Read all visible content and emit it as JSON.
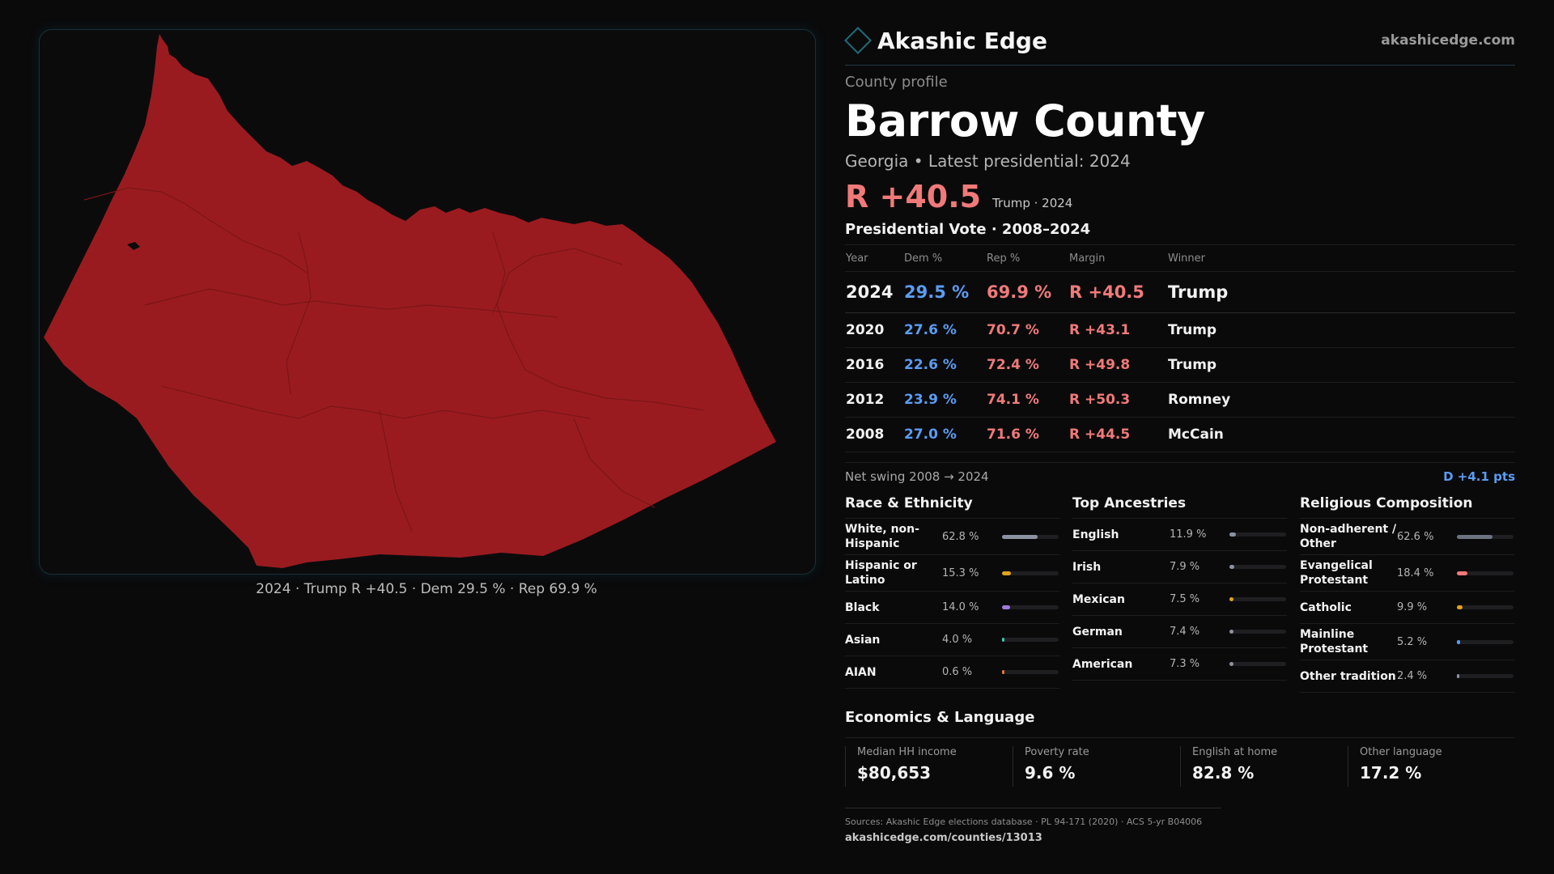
{
  "map": {
    "caption": "2024 · Trump R +40.5 · Dem 29.5 % · Rep 69.9 %",
    "fill_color": "#9a1b1f",
    "line_color": "#7a1519"
  },
  "header": {
    "brand": "Akashic Edge",
    "logo_icon": "diamond-outline",
    "site_url": "akashicedge.com"
  },
  "profile": {
    "kicker": "County profile",
    "title": "Barrow County",
    "subtitle": "Georgia • Latest presidential: 2024",
    "headline_margin": "R +40.5",
    "headline_note": "Trump · 2024"
  },
  "votes": {
    "title": "Presidential Vote · 2008–2024",
    "columns": [
      "Year",
      "Dem %",
      "Rep %",
      "Margin",
      "Winner"
    ],
    "rows": [
      {
        "year": "2024",
        "dem": "29.5 %",
        "rep": "69.9 %",
        "margin": "R +40.5",
        "winner": "Trump"
      },
      {
        "year": "2020",
        "dem": "27.6 %",
        "rep": "70.7 %",
        "margin": "R +43.1",
        "winner": "Trump"
      },
      {
        "year": "2016",
        "dem": "22.6 %",
        "rep": "72.4 %",
        "margin": "R +49.8",
        "winner": "Trump"
      },
      {
        "year": "2012",
        "dem": "23.9 %",
        "rep": "74.1 %",
        "margin": "R +50.3",
        "winner": "Romney"
      },
      {
        "year": "2008",
        "dem": "27.0 %",
        "rep": "71.6 %",
        "margin": "R +44.5",
        "winner": "McCain"
      }
    ],
    "swing_label": "Net swing 2008 → 2024",
    "swing_value": "D +4.1 pts"
  },
  "demographics": [
    {
      "title": "Race & Ethnicity",
      "items": [
        {
          "label": "White, non-Hispanic",
          "pct": "62.8 %",
          "value": 62.8,
          "color": "#8b93a1"
        },
        {
          "label": "Hispanic or Latino",
          "pct": "15.3 %",
          "value": 15.3,
          "color": "#e0a21f"
        },
        {
          "label": "Black",
          "pct": "14.0 %",
          "value": 14.0,
          "color": "#9b7be0"
        },
        {
          "label": "Asian",
          "pct": "4.0 %",
          "value": 4.0,
          "color": "#3fc4a8"
        },
        {
          "label": "AIAN",
          "pct": "0.6 %",
          "value": 0.6,
          "color": "#e07a3f"
        }
      ]
    },
    {
      "title": "Top Ancestries",
      "items": [
        {
          "label": "English",
          "pct": "11.9 %",
          "value": 11.9,
          "color": "#8b93a1"
        },
        {
          "label": "Irish",
          "pct": "7.9 %",
          "value": 7.9,
          "color": "#8b93a1"
        },
        {
          "label": "Mexican",
          "pct": "7.5 %",
          "value": 7.5,
          "color": "#e0a21f"
        },
        {
          "label": "German",
          "pct": "7.4 %",
          "value": 7.4,
          "color": "#8b93a1"
        },
        {
          "label": "American",
          "pct": "7.3 %",
          "value": 7.3,
          "color": "#8b93a1"
        }
      ]
    },
    {
      "title": "Religious Composition",
      "items": [
        {
          "label": "Non-adherent / Other",
          "pct": "62.6 %",
          "value": 62.6,
          "color": "#6b7280"
        },
        {
          "label": "Evangelical Protestant",
          "pct": "18.4 %",
          "value": 18.4,
          "color": "#f07a79"
        },
        {
          "label": "Catholic",
          "pct": "9.9 %",
          "value": 9.9,
          "color": "#e0a21f"
        },
        {
          "label": "Mainline Protestant",
          "pct": "5.2 %",
          "value": 5.2,
          "color": "#5b9cf2"
        },
        {
          "label": "Other tradition",
          "pct": "2.4 %",
          "value": 2.4,
          "color": "#8b93a1"
        }
      ]
    }
  ],
  "economics": {
    "title": "Economics & Language",
    "items": [
      {
        "label": "Median HH income",
        "value": "$80,653"
      },
      {
        "label": "Poverty rate",
        "value": "9.6 %"
      },
      {
        "label": "English at home",
        "value": "82.8 %"
      },
      {
        "label": "Other language",
        "value": "17.2 %"
      }
    ]
  },
  "footer": {
    "sources": "Sources: Akashic Edge elections database · PL 94-171 (2020) · ACS 5-yr B04006",
    "link": "akashicedge.com/counties/13013"
  }
}
